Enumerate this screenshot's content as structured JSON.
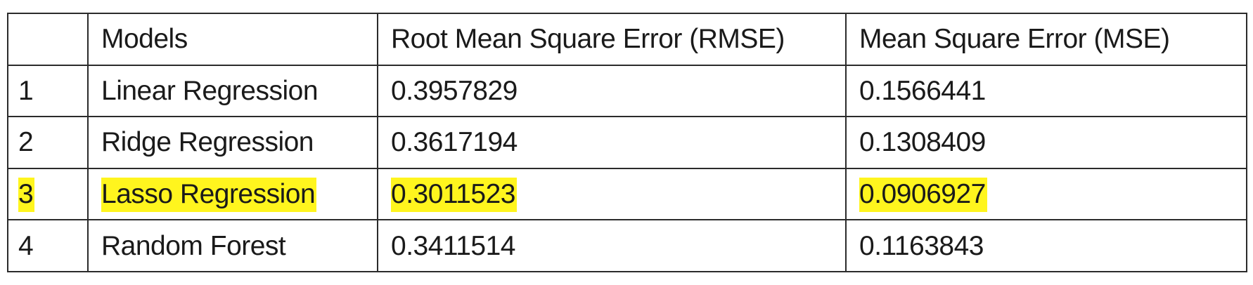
{
  "table": {
    "headers": [
      "",
      "Models",
      "Root Mean Square Error (RMSE)",
      "Mean Square Error (MSE)"
    ],
    "rows": [
      {
        "index": "1",
        "model": "Linear Regression",
        "rmse": "0.3957829",
        "mse": "0.1566441",
        "highlighted": false
      },
      {
        "index": "2",
        "model": "Ridge Regression",
        "rmse": "0.3617194",
        "mse": "0.1308409",
        "highlighted": false
      },
      {
        "index": "3",
        "model": "Lasso Regression",
        "rmse": "0.3011523",
        "mse": "0.0906927",
        "highlighted": true
      },
      {
        "index": "4",
        "model": "Random Forest",
        "rmse": "0.3411514",
        "mse": "0.1163843",
        "highlighted": false
      }
    ],
    "highlight_color": "#fff51e"
  }
}
